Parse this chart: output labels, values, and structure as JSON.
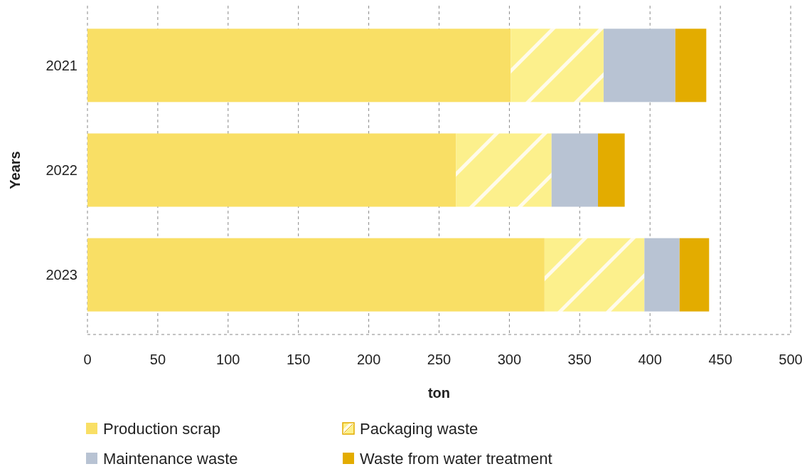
{
  "chart_data": {
    "type": "bar",
    "orientation": "horizontal",
    "stacked": true,
    "xlabel": "ton",
    "ylabel": "Years",
    "categories": [
      "2021",
      "2022",
      "2023"
    ],
    "series": [
      {
        "name": "Production scrap",
        "color": "#f9df65",
        "values": [
          301,
          262,
          325
        ]
      },
      {
        "name": "Packaging waste",
        "color": "#fcf08c",
        "values": [
          66,
          68,
          71
        ]
      },
      {
        "name": "Maintenance waste",
        "color": "#b8c3d3",
        "values": [
          51,
          33,
          25
        ]
      },
      {
        "name": "Waste from water treatment",
        "color": "#e3ac00",
        "values": [
          22,
          19,
          21
        ]
      }
    ],
    "xlim": [
      0,
      500
    ],
    "xticks": [
      0,
      50,
      100,
      150,
      200,
      250,
      300,
      350,
      400,
      450,
      500
    ],
    "grid": "x",
    "legend": "bottom"
  }
}
